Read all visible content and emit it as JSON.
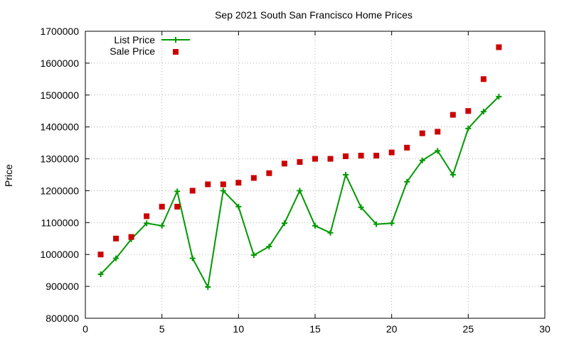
{
  "chart_data": {
    "type": "scatter",
    "title": "Sep 2021 South San Francisco Home Prices",
    "xlabel": "",
    "ylabel": "Price",
    "xlim": [
      0,
      30
    ],
    "ylim": [
      800000,
      1700000
    ],
    "xticks": [
      0,
      5,
      10,
      15,
      20,
      25,
      30
    ],
    "yticks": [
      800000,
      900000,
      1000000,
      1100000,
      1200000,
      1300000,
      1400000,
      1500000,
      1600000,
      1700000
    ],
    "grid": true,
    "legend_position": "top-left",
    "series": [
      {
        "name": "List Price",
        "style": "linespoints",
        "marker": "plus",
        "color": "#009900",
        "x": [
          1,
          2,
          3,
          4,
          5,
          6,
          7,
          8,
          9,
          10,
          11,
          12,
          13,
          14,
          15,
          16,
          17,
          18,
          19,
          20,
          21,
          22,
          23,
          24,
          25,
          26,
          27
        ],
        "y": [
          938000,
          988000,
          1048000,
          1098000,
          1090000,
          1198000,
          988000,
          898000,
          1200000,
          1150000,
          998000,
          1025000,
          1098000,
          1200000,
          1090000,
          1068000,
          1250000,
          1148000,
          1095000,
          1098000,
          1228000,
          1295000,
          1325000,
          1250000,
          1395000,
          1448000,
          1495000
        ]
      },
      {
        "name": "Sale Price",
        "style": "points",
        "marker": "square",
        "color": "#cc0000",
        "x": [
          1,
          2,
          3,
          4,
          5,
          6,
          7,
          8,
          9,
          10,
          11,
          12,
          13,
          14,
          15,
          16,
          17,
          18,
          19,
          20,
          21,
          22,
          23,
          24,
          25,
          26,
          27
        ],
        "y": [
          1000000,
          1050000,
          1055000,
          1120000,
          1150000,
          1150000,
          1200000,
          1220000,
          1220000,
          1225000,
          1240000,
          1255000,
          1285000,
          1290000,
          1300000,
          1300000,
          1308000,
          1310000,
          1310000,
          1320000,
          1335000,
          1380000,
          1385000,
          1438000,
          1450000,
          1550000,
          1650000
        ]
      }
    ]
  }
}
